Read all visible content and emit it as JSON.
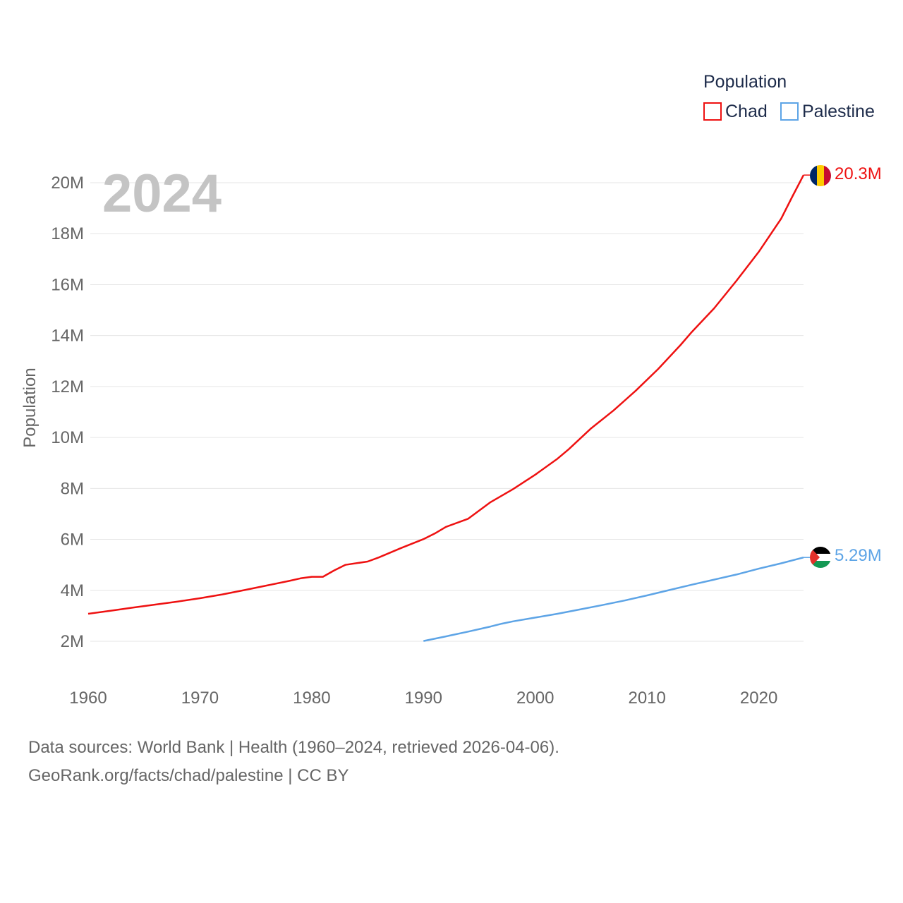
{
  "chart_data": {
    "type": "line",
    "ylabel": "Population",
    "year_display": "2024",
    "legend_title": "Population",
    "ylim": [
      0,
      22000000
    ],
    "xlim": [
      1960,
      2024
    ],
    "y_ticks": [
      {
        "value": 2000000,
        "label": "2M"
      },
      {
        "value": 4000000,
        "label": "4M"
      },
      {
        "value": 6000000,
        "label": "6M"
      },
      {
        "value": 8000000,
        "label": "8M"
      },
      {
        "value": 10000000,
        "label": "10M"
      },
      {
        "value": 12000000,
        "label": "12M"
      },
      {
        "value": 14000000,
        "label": "14M"
      },
      {
        "value": 16000000,
        "label": "16M"
      },
      {
        "value": 18000000,
        "label": "18M"
      },
      {
        "value": 20000000,
        "label": "20M"
      }
    ],
    "x_ticks": [
      1960,
      1970,
      1980,
      1990,
      2000,
      2010,
      2020
    ],
    "series": [
      {
        "name": "Chad",
        "color": "#ee1111",
        "end_label": "20.3M",
        "flag": "chad-flag",
        "x": [
          1960,
          1962,
          1964,
          1966,
          1968,
          1970,
          1972,
          1974,
          1976,
          1978,
          1979,
          1980,
          1981,
          1982,
          1983,
          1985,
          1986,
          1988,
          1990,
          1991,
          1992,
          1994,
          1996,
          1998,
          2000,
          2002,
          2003,
          2005,
          2007,
          2009,
          2011,
          2013,
          2014,
          2016,
          2018,
          2020,
          2022,
          2023,
          2024
        ],
        "values": [
          3080000,
          3200000,
          3320000,
          3440000,
          3560000,
          3690000,
          3840000,
          4010000,
          4190000,
          4370000,
          4470000,
          4530000,
          4530000,
          4780000,
          5000000,
          5130000,
          5290000,
          5660000,
          6010000,
          6230000,
          6490000,
          6810000,
          7460000,
          7970000,
          8540000,
          9170000,
          9540000,
          10360000,
          11060000,
          11840000,
          12690000,
          13630000,
          14140000,
          15070000,
          16150000,
          17290000,
          18590000,
          19460000,
          20300000
        ]
      },
      {
        "name": "Palestine",
        "color": "#5da4e6",
        "end_label": "5.29M",
        "flag": "palestine-flag",
        "x": [
          1990,
          1992,
          1994,
          1996,
          1997,
          1998,
          2000,
          2002,
          2004,
          2006,
          2008,
          2010,
          2012,
          2014,
          2016,
          2018,
          2020,
          2022,
          2024
        ],
        "values": [
          2010000,
          2190000,
          2380000,
          2580000,
          2690000,
          2780000,
          2930000,
          3080000,
          3250000,
          3420000,
          3600000,
          3800000,
          4010000,
          4220000,
          4420000,
          4620000,
          4850000,
          5060000,
          5290000
        ]
      }
    ]
  },
  "footer": {
    "line1": "Data sources: World Bank | Health (1960–2024, retrieved 2026-04-06).",
    "line2": "GeoRank.org/facts/chad/palestine | CC BY"
  }
}
